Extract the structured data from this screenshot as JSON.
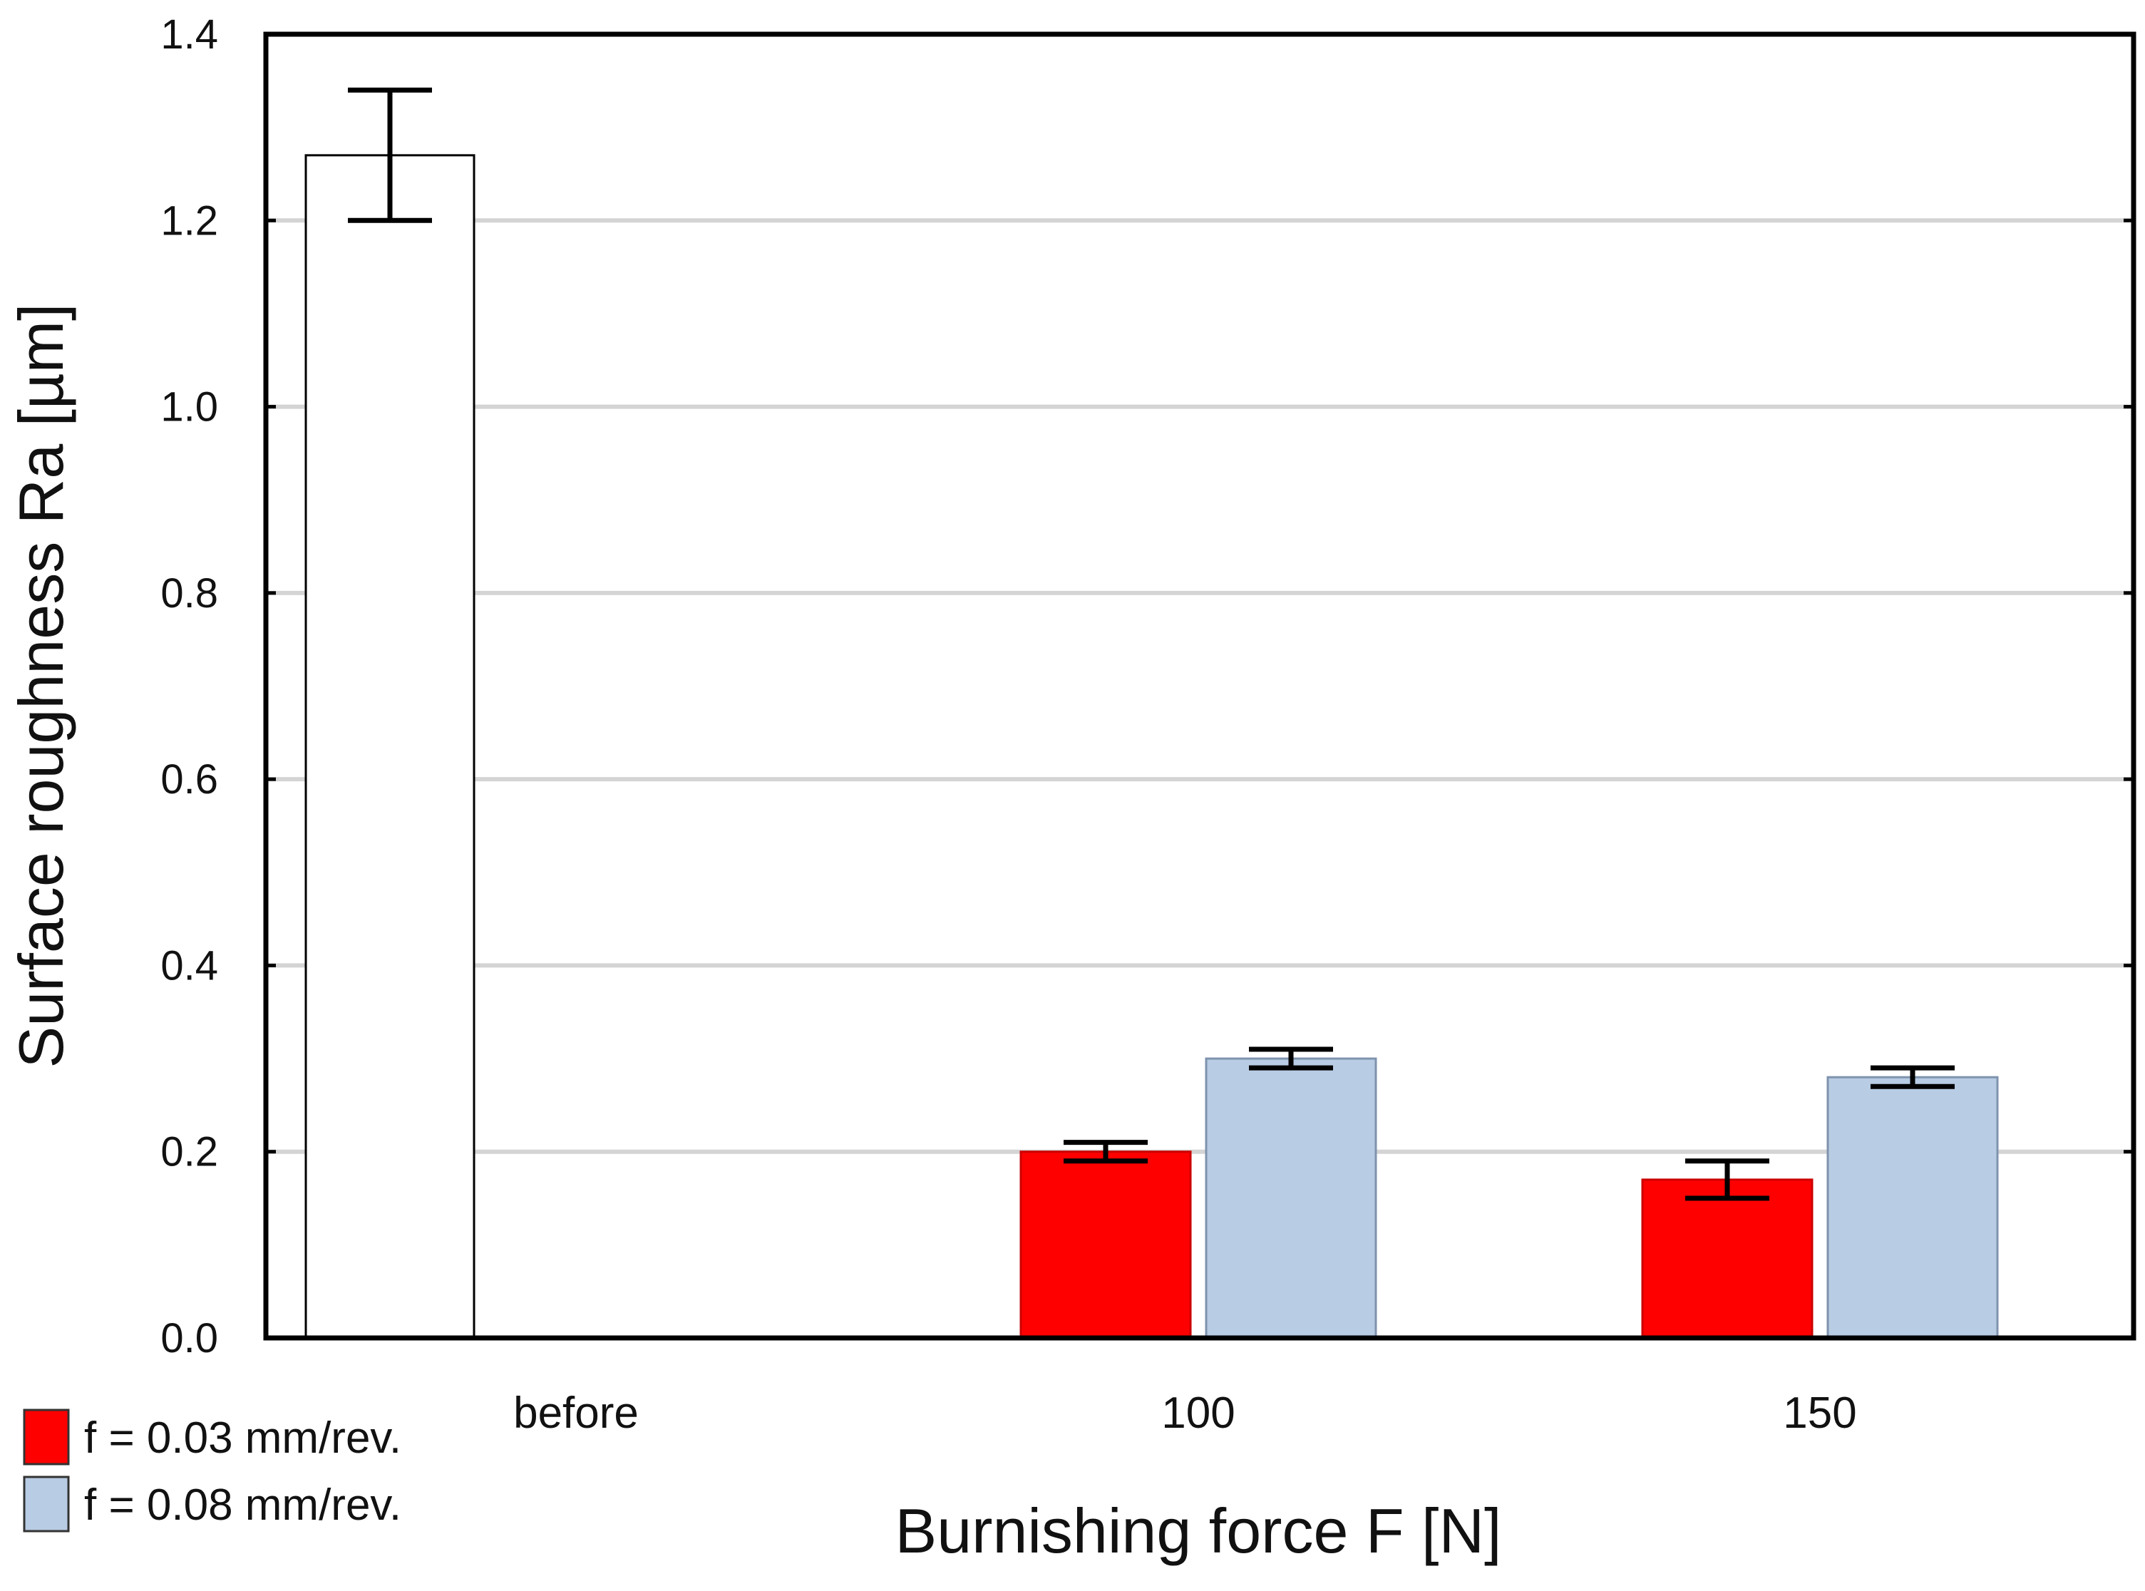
{
  "chart_data": {
    "type": "bar",
    "title": "",
    "xlabel": "Burnishing force F [N]",
    "ylabel": "Surface roughness Ra [µm]",
    "ylim": [
      0,
      1.4
    ],
    "yticks": [
      "0.0",
      "0.2",
      "0.4",
      "0.6",
      "0.8",
      "1.0",
      "1.2",
      "1.4"
    ],
    "grid": "horizontal",
    "legend_position": "bottom-left",
    "categories": [
      "before",
      "100",
      "150"
    ],
    "reference": {
      "category": "before",
      "value": 1.27,
      "error": [
        1.2,
        1.34
      ],
      "color": "#ffffff"
    },
    "series": [
      {
        "name": "f = 0.03 mm/rev.",
        "color": "#ff0000",
        "values": [
          null,
          0.2,
          0.17
        ],
        "error_low": [
          null,
          0.19,
          0.15
        ],
        "error_high": [
          null,
          0.21,
          0.19
        ]
      },
      {
        "name": "f = 0.08 mm/rev.",
        "color": "#b8cce4",
        "values": [
          null,
          0.3,
          0.28
        ],
        "error_low": [
          null,
          0.29,
          0.27
        ],
        "error_high": [
          null,
          0.31,
          0.29
        ]
      }
    ]
  }
}
